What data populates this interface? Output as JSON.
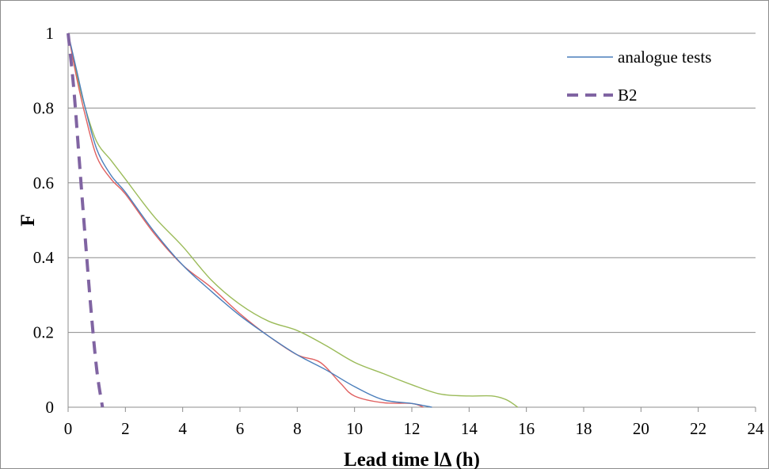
{
  "chart_data": {
    "type": "line",
    "xlabel": "Lead time lΔ (h)",
    "ylabel": "F",
    "xlim": [
      0,
      24
    ],
    "ylim": [
      0,
      1
    ],
    "xticks": [
      "0",
      "2",
      "4",
      "6",
      "8",
      "10",
      "12",
      "14",
      "16",
      "18",
      "20",
      "22",
      "24"
    ],
    "yticks": [
      "0",
      "0.2",
      "0.4",
      "0.6",
      "0.8",
      "1"
    ],
    "grid": "horizontal",
    "legend_position": "top-right",
    "legend": [
      "analogue tests",
      "B2"
    ],
    "colors": {
      "analogue_tests": "#4a7ebb",
      "red_series": "#e06060",
      "green_series": "#9bbb59",
      "b2": "#8064a2",
      "grid": "#8c8c8c",
      "axis": "#8c8c8c"
    },
    "series": [
      {
        "name": "analogue tests",
        "style": "solid",
        "x": [
          0,
          0.3,
          0.6,
          1.0,
          1.5,
          2.0,
          3.0,
          4.0,
          5.0,
          6.0,
          7.0,
          8.0,
          9.0,
          10.0,
          11.0,
          12.0,
          12.7
        ],
        "y": [
          1.0,
          0.9,
          0.8,
          0.69,
          0.62,
          0.575,
          0.47,
          0.38,
          0.31,
          0.245,
          0.19,
          0.14,
          0.1,
          0.055,
          0.02,
          0.01,
          0.0
        ]
      },
      {
        "style": "solid",
        "x": [
          0,
          0.3,
          0.6,
          1.0,
          1.5,
          2.0,
          3.0,
          4.0,
          5.0,
          6.0,
          7.0,
          8.0,
          8.8,
          9.5,
          10.0,
          11.0,
          12.0,
          12.4
        ],
        "y": [
          1.0,
          0.88,
          0.78,
          0.67,
          0.61,
          0.57,
          0.465,
          0.38,
          0.32,
          0.25,
          0.19,
          0.14,
          0.12,
          0.065,
          0.03,
          0.012,
          0.01,
          0.0
        ]
      },
      {
        "style": "solid",
        "x": [
          0,
          0.3,
          0.6,
          1.0,
          1.5,
          2.0,
          3.0,
          4.0,
          5.0,
          6.0,
          7.0,
          8.0,
          9.0,
          10.0,
          11.0,
          12.0,
          13.0,
          14.0,
          14.8,
          15.3,
          15.7
        ],
        "y": [
          1.0,
          0.89,
          0.8,
          0.71,
          0.66,
          0.61,
          0.51,
          0.43,
          0.34,
          0.275,
          0.23,
          0.205,
          0.165,
          0.12,
          0.09,
          0.06,
          0.035,
          0.03,
          0.03,
          0.02,
          0.0
        ]
      },
      {
        "name": "B2",
        "style": "dashed",
        "x": [
          0,
          0.2,
          0.4,
          0.6,
          0.8,
          1.0,
          1.2
        ],
        "y": [
          1.0,
          0.85,
          0.65,
          0.45,
          0.26,
          0.1,
          0.0
        ]
      }
    ]
  }
}
